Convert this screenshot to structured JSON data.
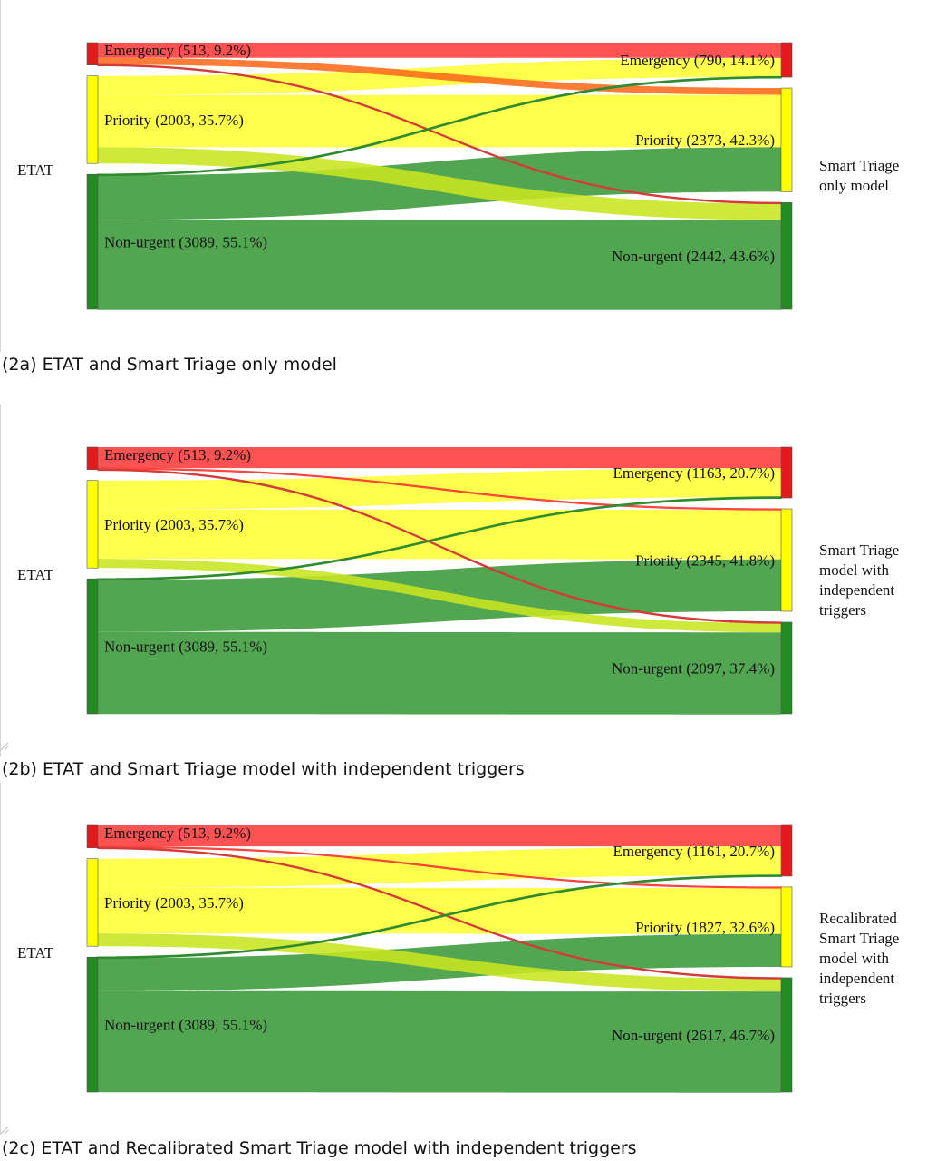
{
  "colors": {
    "emergency_flow": "#ff3b3b",
    "priority_flow": "#ffff33",
    "nonurgent_flow": "#3a9a3a",
    "emergency_node": "#e31a1c",
    "priority_node": "#ffff00",
    "nonurgent_node": "#228b22",
    "crossover_emergency_priority": "#ff6a1a",
    "crossover_priority_nonurgent": "#c8e620"
  },
  "chart_data": [
    {
      "type": "sankey",
      "caption": "(2a) ETAT and Smart Triage only model",
      "source_title": "ETAT",
      "target_title_lines": [
        "Smart Triage",
        "only model"
      ],
      "sources": [
        {
          "key": "E",
          "label": "Emergency (513, 9.2%)",
          "value": 513
        },
        {
          "key": "P",
          "label": "Priority (2003, 35.7%)",
          "value": 2003
        },
        {
          "key": "N",
          "label": "Non-urgent (3089, 55.1%)",
          "value": 3089
        }
      ],
      "targets": [
        {
          "key": "E",
          "label": "Emergency (790, 14.1%)",
          "value": 790
        },
        {
          "key": "P",
          "label": "Priority (2373, 42.3%)",
          "value": 2373
        },
        {
          "key": "N",
          "label": "Non-urgent (2442, 43.6%)",
          "value": 2442
        }
      ],
      "flows": [
        {
          "from": "E",
          "to": "E",
          "value": 347
        },
        {
          "from": "E",
          "to": "P",
          "value": 156
        },
        {
          "from": "E",
          "to": "N",
          "value": 10
        },
        {
          "from": "P",
          "to": "E",
          "value": 433
        },
        {
          "from": "P",
          "to": "P",
          "value": 1200
        },
        {
          "from": "P",
          "to": "N",
          "value": 370
        },
        {
          "from": "N",
          "to": "E",
          "value": 10
        },
        {
          "from": "N",
          "to": "P",
          "value": 1017
        },
        {
          "from": "N",
          "to": "N",
          "value": 2062
        }
      ]
    },
    {
      "type": "sankey",
      "caption": "(2b) ETAT and Smart Triage model with independent triggers",
      "source_title": "ETAT",
      "target_title_lines": [
        "Smart Triage",
        "model with",
        "independent",
        "triggers"
      ],
      "sources": [
        {
          "key": "E",
          "label": "Emergency (513, 9.2%)",
          "value": 513
        },
        {
          "key": "P",
          "label": "Priority (2003, 35.7%)",
          "value": 2003
        },
        {
          "key": "N",
          "label": "Non-urgent (3089, 55.1%)",
          "value": 3089
        }
      ],
      "targets": [
        {
          "key": "E",
          "label": "Emergency (1163, 20.7%)",
          "value": 1163
        },
        {
          "key": "P",
          "label": "Priority (2345, 41.8%)",
          "value": 2345
        },
        {
          "key": "N",
          "label": "Non-urgent (2097, 37.4%)",
          "value": 2097
        }
      ],
      "flows": [
        {
          "from": "E",
          "to": "E",
          "value": 479
        },
        {
          "from": "E",
          "to": "P",
          "value": 24
        },
        {
          "from": "E",
          "to": "N",
          "value": 10
        },
        {
          "from": "P",
          "to": "E",
          "value": 664
        },
        {
          "from": "P",
          "to": "P",
          "value": 1130
        },
        {
          "from": "P",
          "to": "N",
          "value": 209
        },
        {
          "from": "N",
          "to": "E",
          "value": 20
        },
        {
          "from": "N",
          "to": "P",
          "value": 1191
        },
        {
          "from": "N",
          "to": "N",
          "value": 1878
        }
      ]
    },
    {
      "type": "sankey",
      "caption": "(2c) ETAT and Recalibrated Smart Triage model with independent triggers",
      "source_title": "ETAT",
      "target_title_lines": [
        "Recalibrated",
        "Smart Triage",
        "model with",
        "independent",
        "triggers"
      ],
      "sources": [
        {
          "key": "E",
          "label": "Emergency (513, 9.2%)",
          "value": 513
        },
        {
          "key": "P",
          "label": "Priority (2003, 35.7%)",
          "value": 2003
        },
        {
          "key": "N",
          "label": "Non-urgent (3089, 55.1%)",
          "value": 3089
        }
      ],
      "targets": [
        {
          "key": "E",
          "label": "Emergency (1161, 20.7%)",
          "value": 1161
        },
        {
          "key": "P",
          "label": "Priority (1827, 32.6%)",
          "value": 1827
        },
        {
          "key": "N",
          "label": "Non-urgent (2617, 46.7%)",
          "value": 2617
        }
      ],
      "flows": [
        {
          "from": "E",
          "to": "E",
          "value": 479
        },
        {
          "from": "E",
          "to": "P",
          "value": 24
        },
        {
          "from": "E",
          "to": "N",
          "value": 10
        },
        {
          "from": "P",
          "to": "E",
          "value": 662
        },
        {
          "from": "P",
          "to": "P",
          "value": 1050
        },
        {
          "from": "P",
          "to": "N",
          "value": 291
        },
        {
          "from": "N",
          "to": "E",
          "value": 20
        },
        {
          "from": "N",
          "to": "P",
          "value": 753
        },
        {
          "from": "N",
          "to": "N",
          "value": 2316
        }
      ]
    }
  ]
}
